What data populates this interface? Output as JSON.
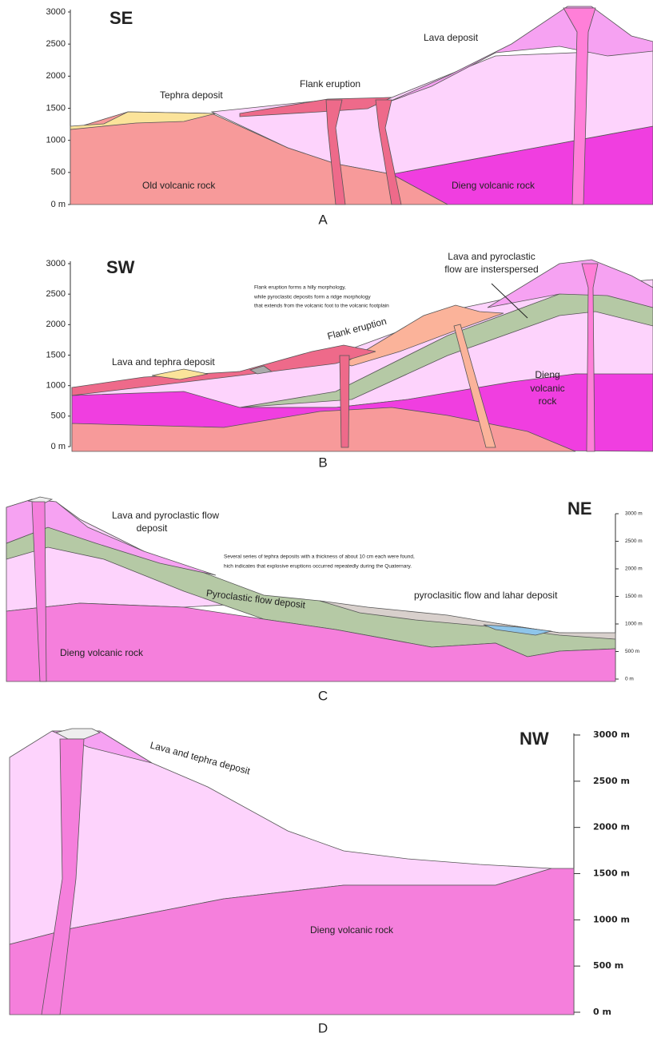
{
  "panels": [
    {
      "direction": "SE",
      "letter": "A",
      "depth_ticks": [
        "3000",
        "2500",
        "2000",
        "1500",
        "1000",
        "500",
        "0 m"
      ],
      "labels": {
        "lava": "Lava deposit",
        "flank": "Flank eruption",
        "tephra": "Tephra deposit",
        "old_rock": "Old volcanic rock",
        "dieng": "Dieng volcanic rock"
      }
    },
    {
      "direction": "SW",
      "letter": "B",
      "depth_ticks": [
        "3000",
        "2500",
        "2000",
        "1500",
        "1000",
        "500",
        "0 m"
      ],
      "labels": {
        "interspersed": [
          "Lava and pyroclastic",
          "flow are insterspersed"
        ],
        "note": [
          "Flank eruption forms a hilly morphology,",
          "while pyroclastic deposits form a ridge morphology",
          "that extends from the volcanic foot to the volcanic footplain"
        ],
        "flank": "Flank eruption",
        "lava_tephra": "Lava and tephra deposit",
        "dieng": [
          "Dieng",
          "volcanic",
          "rock"
        ]
      }
    },
    {
      "direction": "NE",
      "letter": "C",
      "depth_ticks": [
        "3000 m",
        "2500 m",
        "2000 m",
        "1500 m",
        "1000 m",
        "500 m",
        "0 m"
      ],
      "labels": {
        "lava_pyro": [
          "Lava and pyroclastic flow",
          "deposit"
        ],
        "note": [
          "Several series of tephra deposits with a thickness of about 10 cm each were found,",
          "hich indicates that explosive eruptions occurred repeatedly during the Quaternary."
        ],
        "pyro": "Pyroclastic flow deposit",
        "lahar": "pyroclasitic flow and lahar deposit",
        "dieng": "Dieng volcanic rock"
      }
    },
    {
      "direction": "NW",
      "letter": "D",
      "depth_ticks": [
        "3000 m",
        "2500 m",
        "2000 m",
        "1500 m",
        "1000 m",
        "500 m",
        "0 m"
      ],
      "labels": {
        "lava_tephra": "Lava and tephra deposit",
        "dieng": "Dieng volcanic rock"
      }
    }
  ]
}
